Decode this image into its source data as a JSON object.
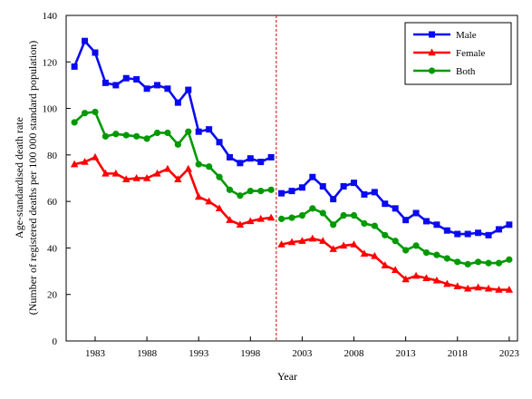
{
  "chart_data": {
    "type": "line",
    "xlabel": "Year",
    "ylabel_line1": "Age-standardised death rate",
    "ylabel_line2": "(Number of registered deaths per 100 000 standard population)",
    "ylim": [
      0,
      140
    ],
    "yticks": [
      0,
      20,
      40,
      60,
      80,
      100,
      120,
      140
    ],
    "xlim": [
      1980.2,
      2023.8
    ],
    "xticks": [
      1983,
      1988,
      1993,
      1998,
      2003,
      2008,
      2013,
      2018,
      2023
    ],
    "grid": false,
    "legend_position": "top-right",
    "reference_line": {
      "x": 2000.5,
      "style": "dashed",
      "color": "#d00000"
    },
    "series": [
      {
        "name": "Male",
        "color": "#0a0af0",
        "marker": "square",
        "x": [
          1981,
          1982,
          1983,
          1984,
          1985,
          1986,
          1987,
          1988,
          1989,
          1990,
          1991,
          1992,
          1993,
          1994,
          1995,
          1996,
          1997,
          1998,
          1999,
          2000,
          2001,
          2002,
          2003,
          2004,
          2005,
          2006,
          2007,
          2008,
          2009,
          2010,
          2011,
          2012,
          2013,
          2014,
          2015,
          2016,
          2017,
          2018,
          2019,
          2020,
          2021,
          2022,
          2023
        ],
        "values": [
          118,
          129,
          124,
          111,
          110,
          113,
          112.5,
          108.5,
          110,
          108.5,
          102.5,
          108,
          90,
          91,
          85.5,
          79,
          76.5,
          78.5,
          77,
          79,
          63.5,
          64.5,
          66,
          70.5,
          66.5,
          61,
          66.5,
          68,
          63,
          64,
          59,
          57,
          52,
          55,
          51.5,
          50,
          47.5,
          46,
          46,
          46.5,
          45.5,
          48,
          50
        ]
      },
      {
        "name": "Female",
        "color": "#ff0000",
        "marker": "triangle",
        "x": [
          1981,
          1982,
          1983,
          1984,
          1985,
          1986,
          1987,
          1988,
          1989,
          1990,
          1991,
          1992,
          1993,
          1994,
          1995,
          1996,
          1997,
          1998,
          1999,
          2000,
          2001,
          2002,
          2003,
          2004,
          2005,
          2006,
          2007,
          2008,
          2009,
          2010,
          2011,
          2012,
          2013,
          2014,
          2015,
          2016,
          2017,
          2018,
          2019,
          2020,
          2021,
          2022,
          2023
        ],
        "values": [
          76,
          77,
          79,
          72,
          72,
          69.5,
          70,
          70,
          72,
          74,
          69.5,
          74,
          62,
          60,
          57,
          52,
          50,
          51.5,
          52.5,
          53,
          41.5,
          42.5,
          43,
          44,
          43,
          39.5,
          41,
          41.5,
          37.5,
          36.5,
          32.5,
          30.5,
          26.5,
          28,
          27,
          26,
          24.5,
          23.5,
          22.5,
          23,
          22.5,
          22,
          22
        ]
      },
      {
        "name": "Both",
        "color": "#009900",
        "marker": "circle",
        "x": [
          1981,
          1982,
          1983,
          1984,
          1985,
          1986,
          1987,
          1988,
          1989,
          1990,
          1991,
          1992,
          1993,
          1994,
          1995,
          1996,
          1997,
          1998,
          1999,
          2000,
          2001,
          2002,
          2003,
          2004,
          2005,
          2006,
          2007,
          2008,
          2009,
          2010,
          2011,
          2012,
          2013,
          2014,
          2015,
          2016,
          2017,
          2018,
          2019,
          2020,
          2021,
          2022,
          2023
        ],
        "values": [
          94,
          98,
          98.5,
          88,
          89,
          88.5,
          88,
          87,
          89.5,
          89.5,
          84.5,
          90,
          76,
          75,
          70.5,
          65,
          62.5,
          64.5,
          64.5,
          65,
          52.5,
          53,
          54,
          57,
          55,
          50,
          54,
          54,
          50.5,
          49.5,
          45.5,
          43,
          39,
          41,
          38,
          37,
          35.5,
          34,
          33,
          34,
          33.5,
          33.5,
          35
        ]
      }
    ]
  }
}
